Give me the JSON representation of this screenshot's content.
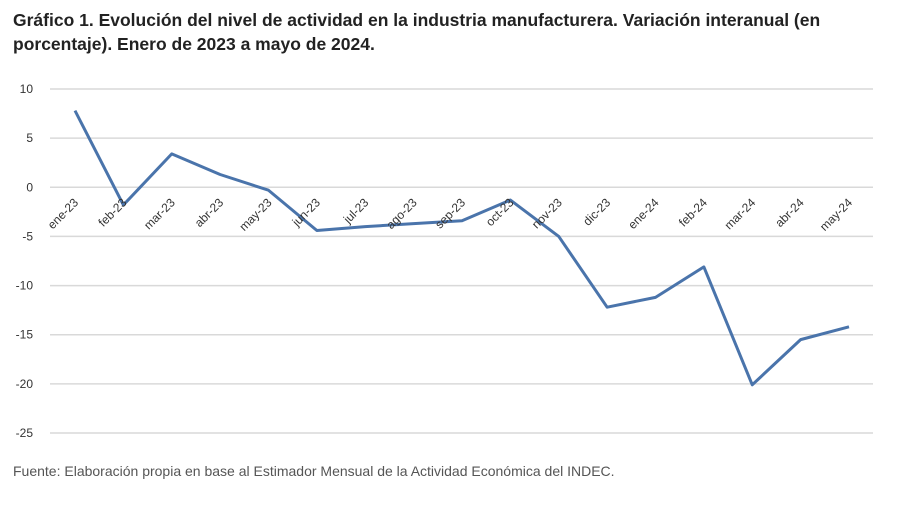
{
  "chart_data": {
    "type": "line",
    "title": "Gráfico 1. Evolución del nivel de actividad en la industria manufacturera. Variación interanual (en porcentaje). Enero de 2023 a mayo de 2024.",
    "xlabel": "",
    "ylabel": "",
    "categories": [
      "ene-23",
      "feb-23",
      "mar-23",
      "abr-23",
      "may-23",
      "jun-23",
      "jul-23",
      "ago-23",
      "sep-23",
      "oct-23",
      "nov-23",
      "dic-23",
      "ene-24",
      "feb-24",
      "mar-24",
      "abr-24",
      "may-24"
    ],
    "series": [
      {
        "values": [
          7.8,
          -1.8,
          3.4,
          1.3,
          -0.3,
          -4.4,
          -4.0,
          -3.7,
          -3.4,
          -1.3,
          -5.0,
          -12.2,
          -11.2,
          -8.1,
          -20.1,
          -15.5,
          -14.2
        ]
      }
    ],
    "ylim": [
      -25,
      10
    ],
    "yticks": [
      10,
      5,
      0,
      -5,
      -10,
      -15,
      -20,
      -25
    ],
    "grid": true,
    "legend": "none",
    "line_color": "#4a74ab",
    "grid_color": "#d9d9d9"
  },
  "source": "Fuente: Elaboración propia en base al Estimador Mensual de la Actividad Económica del INDEC."
}
